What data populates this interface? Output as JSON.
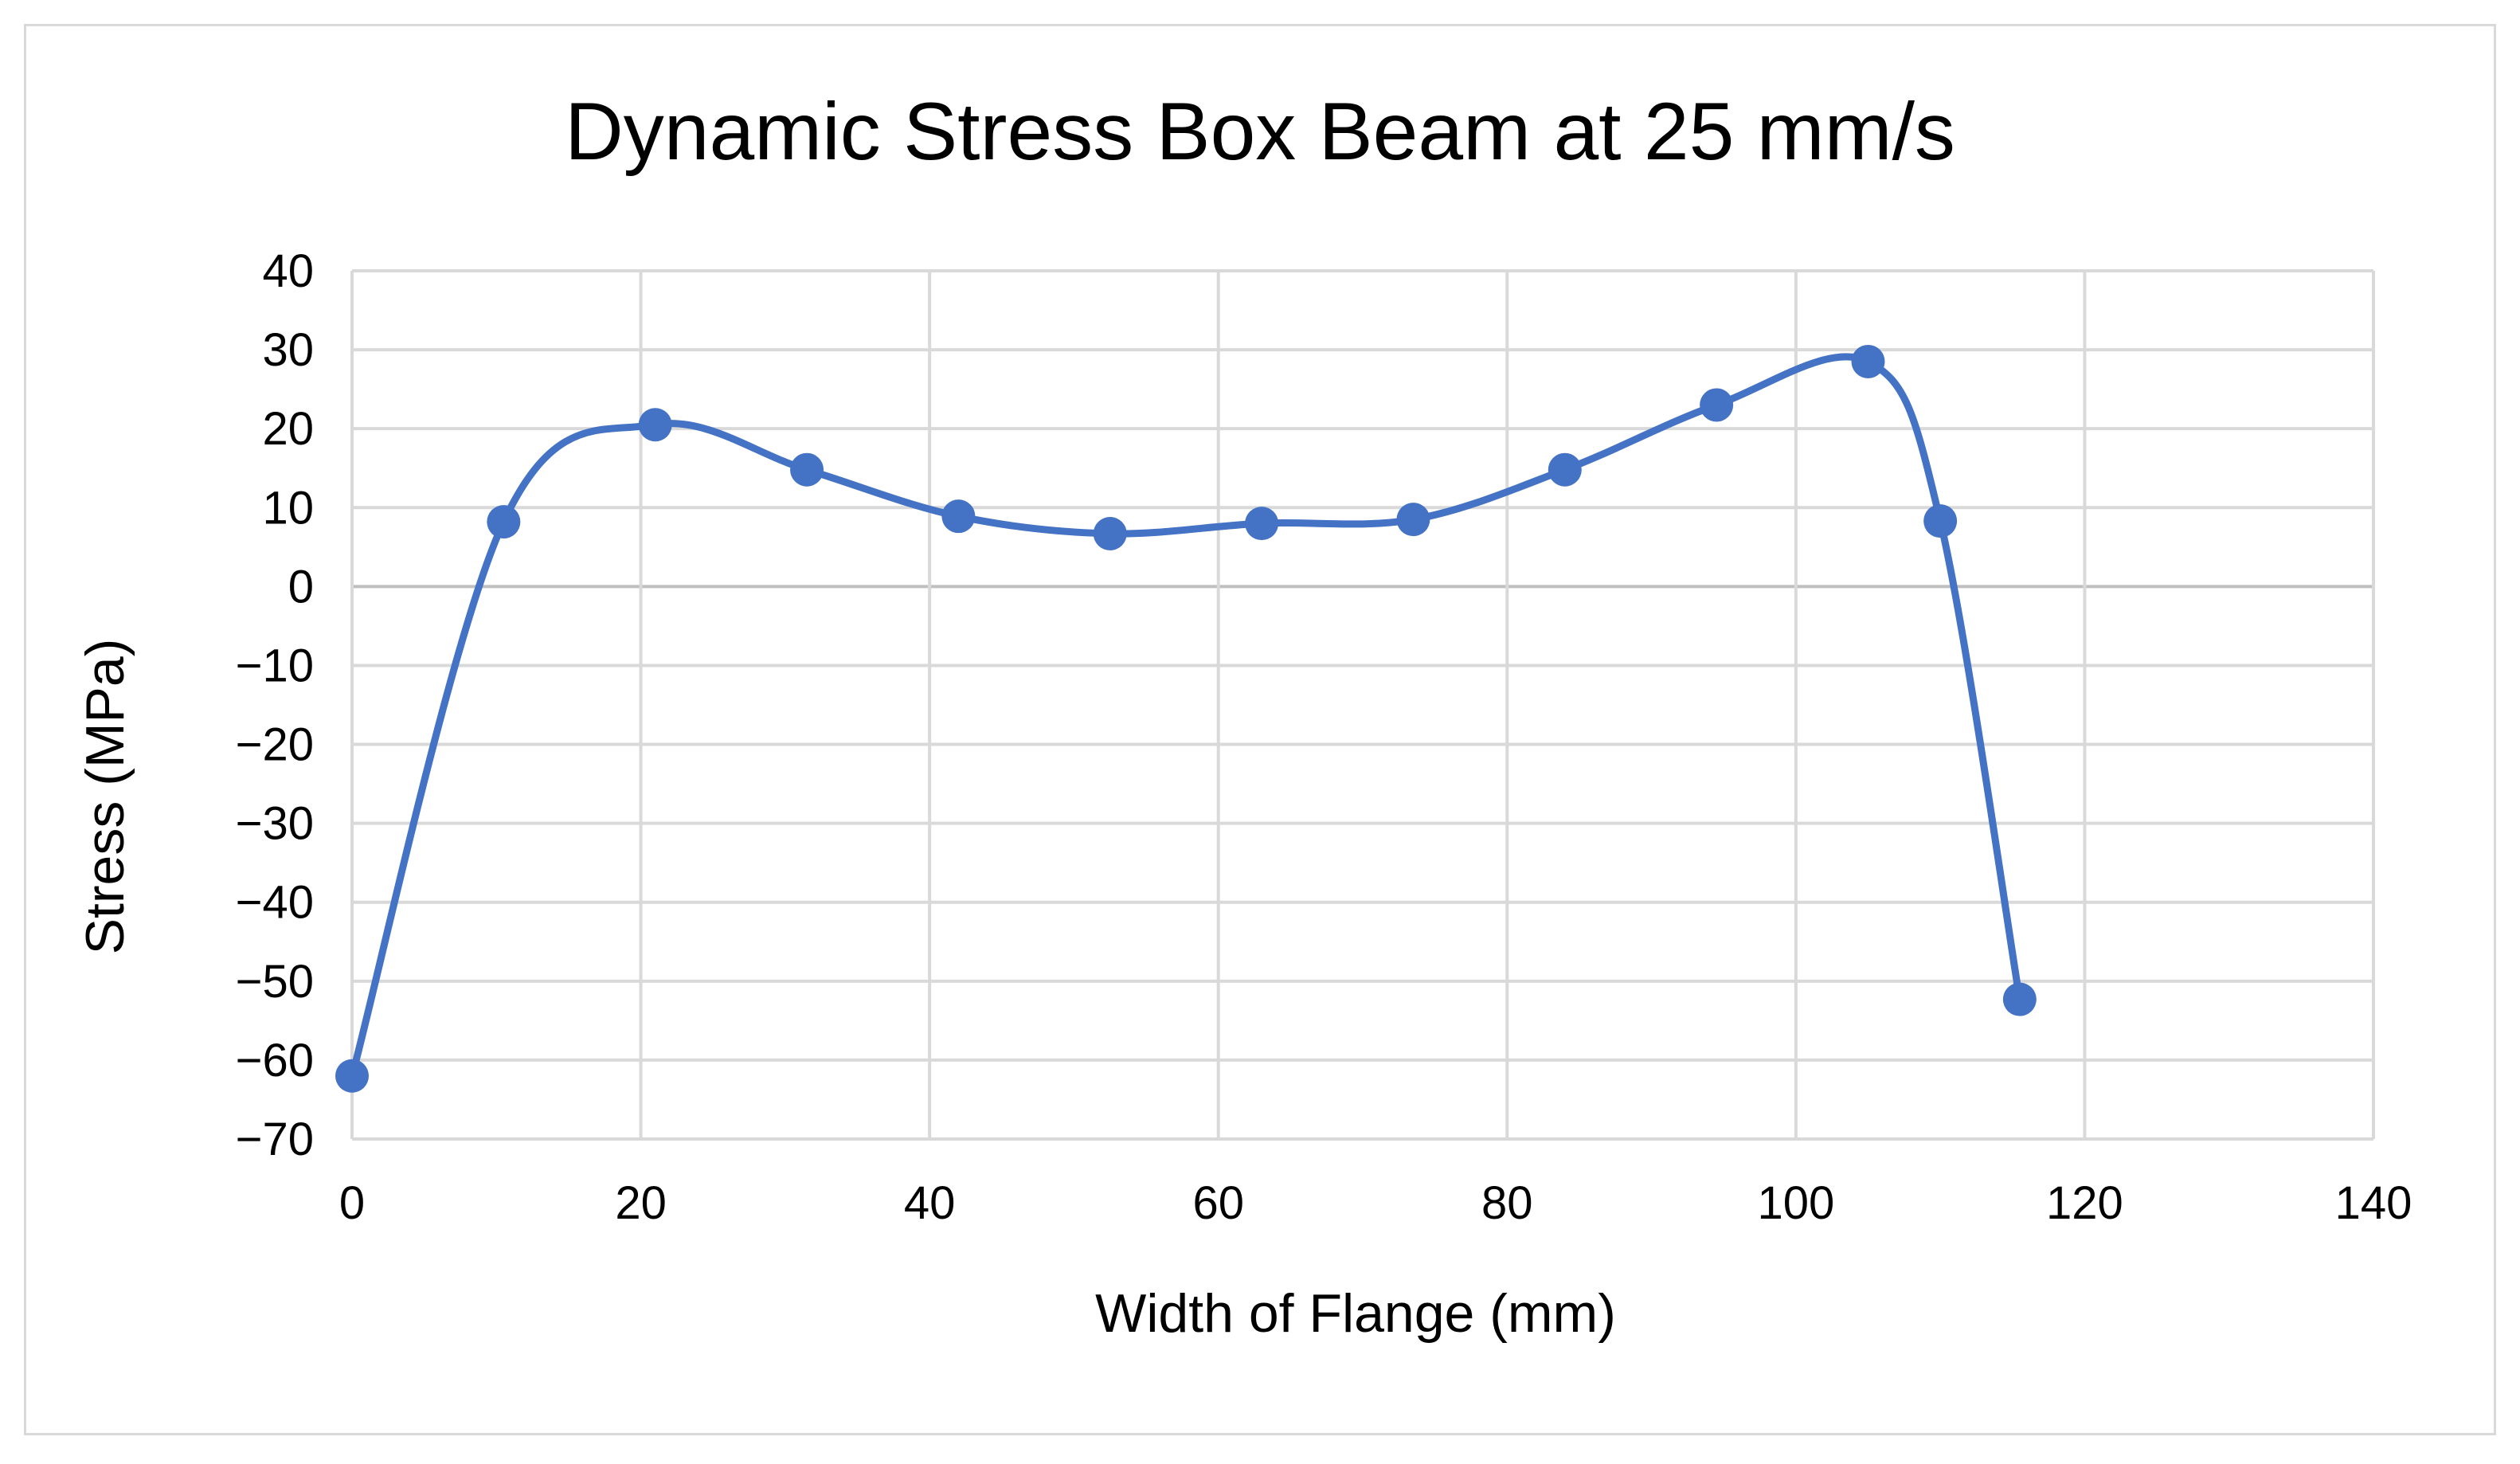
{
  "chart_data": {
    "type": "scatter",
    "title": "Dynamic Stress Box Beam at 25 mm/s",
    "xlabel": "Width of Flange (mm)",
    "ylabel": "Stress (MPa)",
    "xlim": [
      0,
      140
    ],
    "ylim": [
      -70,
      40
    ],
    "x_ticks": [
      0,
      20,
      40,
      60,
      80,
      100,
      120,
      140
    ],
    "y_ticks": [
      40,
      30,
      20,
      10,
      0,
      -10,
      -20,
      -30,
      -40,
      -50,
      -60,
      -70
    ],
    "grid": true,
    "smooth_line": true,
    "series": [
      {
        "color": "#4472c4",
        "points": [
          {
            "x": 0,
            "y": -62
          },
          {
            "x": 10.5,
            "y": 8.2
          },
          {
            "x": 21,
            "y": 20.5
          },
          {
            "x": 31.5,
            "y": 14.8
          },
          {
            "x": 42,
            "y": 8.9
          },
          {
            "x": 52.5,
            "y": 6.7
          },
          {
            "x": 63,
            "y": 8.0
          },
          {
            "x": 73.5,
            "y": 8.5
          },
          {
            "x": 84,
            "y": 14.8
          },
          {
            "x": 94.5,
            "y": 23.0
          },
          {
            "x": 105,
            "y": 28.5
          },
          {
            "x": 110,
            "y": 8.3
          },
          {
            "x": 115.5,
            "y": -52.3
          }
        ]
      }
    ]
  }
}
